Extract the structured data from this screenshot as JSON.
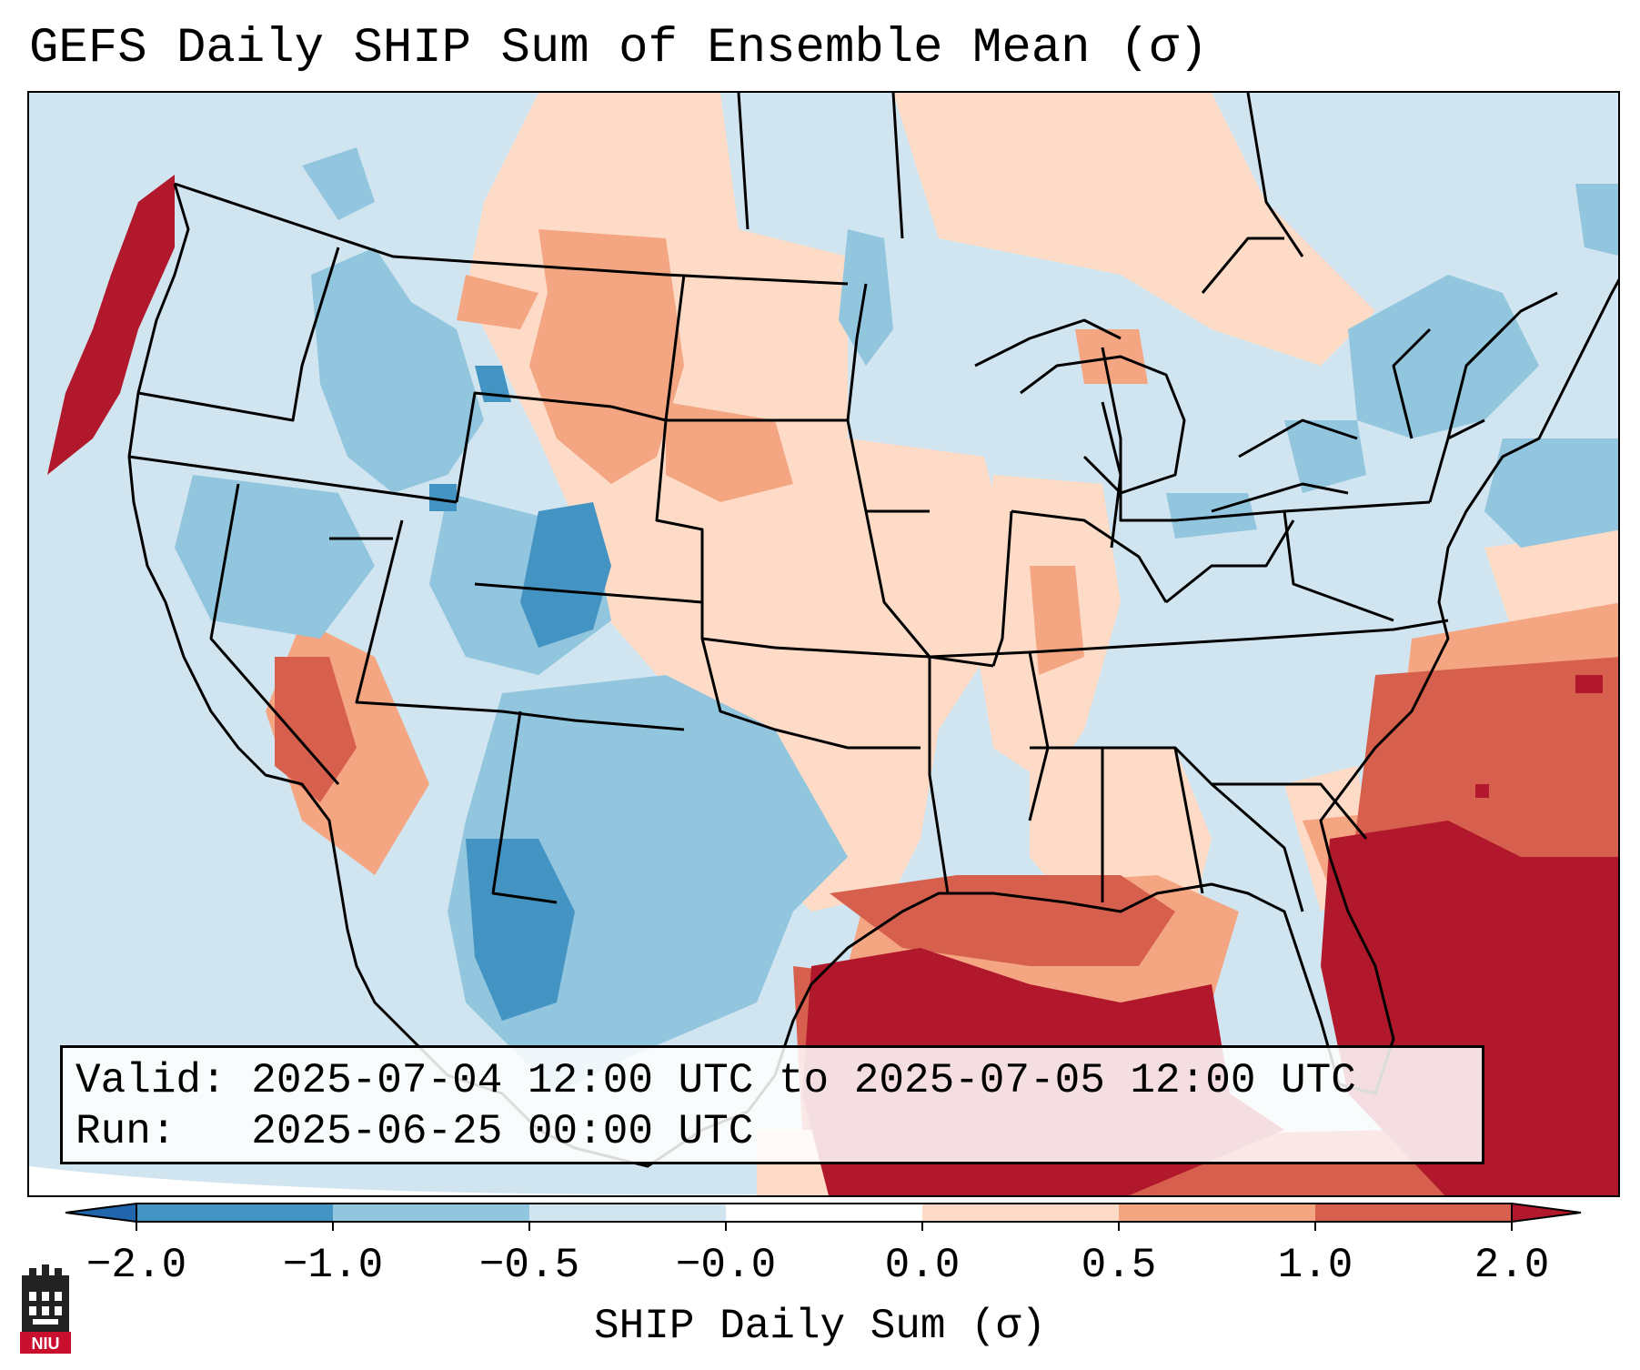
{
  "title": "GEFS Daily SHIP Sum of Ensemble Mean (σ)",
  "map": {
    "region": "Contiguous United States",
    "icons": [
      "state-boundaries",
      "coastlines",
      "great-lakes"
    ]
  },
  "info": {
    "valid_label": "Valid:",
    "valid_value": "2025-07-04 12:00 UTC to 2025-07-05 12:00 UTC",
    "run_label": "Run:",
    "run_value": "2025-06-25 00:00 UTC"
  },
  "colorbar": {
    "label": "SHIP Daily Sum (σ)",
    "ticks": [
      "−2.0",
      "−1.0",
      "−0.5",
      "−0.0",
      "0.0",
      "0.5",
      "1.0",
      "2.0"
    ],
    "colors": [
      "#4393c3",
      "#92c5de",
      "#d1e5f0",
      "#ffffff",
      "#fddbc7",
      "#f4a582",
      "#d6604d"
    ],
    "extend_low_color": "#2166ac",
    "extend_high_color": "#b2182b"
  },
  "logo": {
    "text": "NIU",
    "color": "#c8102e"
  }
}
